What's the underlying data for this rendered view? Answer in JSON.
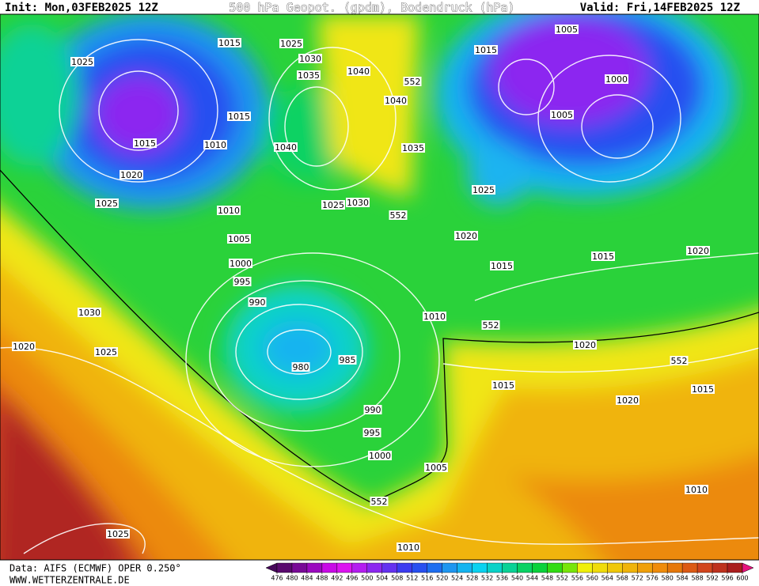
{
  "header": {
    "init": "Init: Mon,03FEB2025 12Z",
    "title": "500 hPa Geopot. (gpdm), Bodendruck (hPa)",
    "valid": "Valid: Fri,14FEB2025 12Z"
  },
  "footer": {
    "source": "Data: AIFS (ECMWF) OPER 0.250°",
    "site": "WWW.WETTERZENTRALE.DE"
  },
  "isobar_labels": [
    "1015",
    "1025",
    "1030",
    "1035",
    "1040",
    "552",
    "1040",
    "1025",
    "1015",
    "1005",
    "1000",
    "1005",
    "1015",
    "1015",
    "1010",
    "1040",
    "1035",
    "1020",
    "1025",
    "1010",
    "1025",
    "1030",
    "552",
    "1025",
    "1020",
    "1005",
    "1000",
    "1015",
    "1015",
    "1020",
    "995",
    "990",
    "1030",
    "1010",
    "552",
    "1020",
    "1025",
    "1020",
    "980",
    "985",
    "552",
    "1015",
    "1015",
    "1020",
    "990",
    "995",
    "1000",
    "1005",
    "552",
    "1010",
    "1025",
    "1010"
  ],
  "colorbar": {
    "ticks": [
      476,
      480,
      484,
      488,
      492,
      496,
      500,
      504,
      508,
      512,
      516,
      520,
      524,
      528,
      532,
      536,
      540,
      544,
      548,
      552,
      556,
      560,
      564,
      568,
      572,
      576,
      580,
      584,
      588,
      592,
      596,
      600
    ],
    "colors": [
      "#5a0a6e",
      "#780a96",
      "#9b0abf",
      "#c80ae6",
      "#dc14f0",
      "#b41ef0",
      "#8c28f0",
      "#6432f0",
      "#3c3cf0",
      "#2850f0",
      "#1e6ef0",
      "#1e96f0",
      "#14b4f0",
      "#0ad2f0",
      "#0ad2c8",
      "#0ad296",
      "#0ad264",
      "#0ad23c",
      "#32dc14",
      "#78e60a",
      "#f0f00a",
      "#f0dc0a",
      "#f0c80a",
      "#f0b40a",
      "#f0a00a",
      "#f08c0a",
      "#e6780a",
      "#dc5a14",
      "#d2461e",
      "#be321e",
      "#aa1e1e"
    ],
    "low_color": "#46085a",
    "high_color": "#e6147d"
  }
}
